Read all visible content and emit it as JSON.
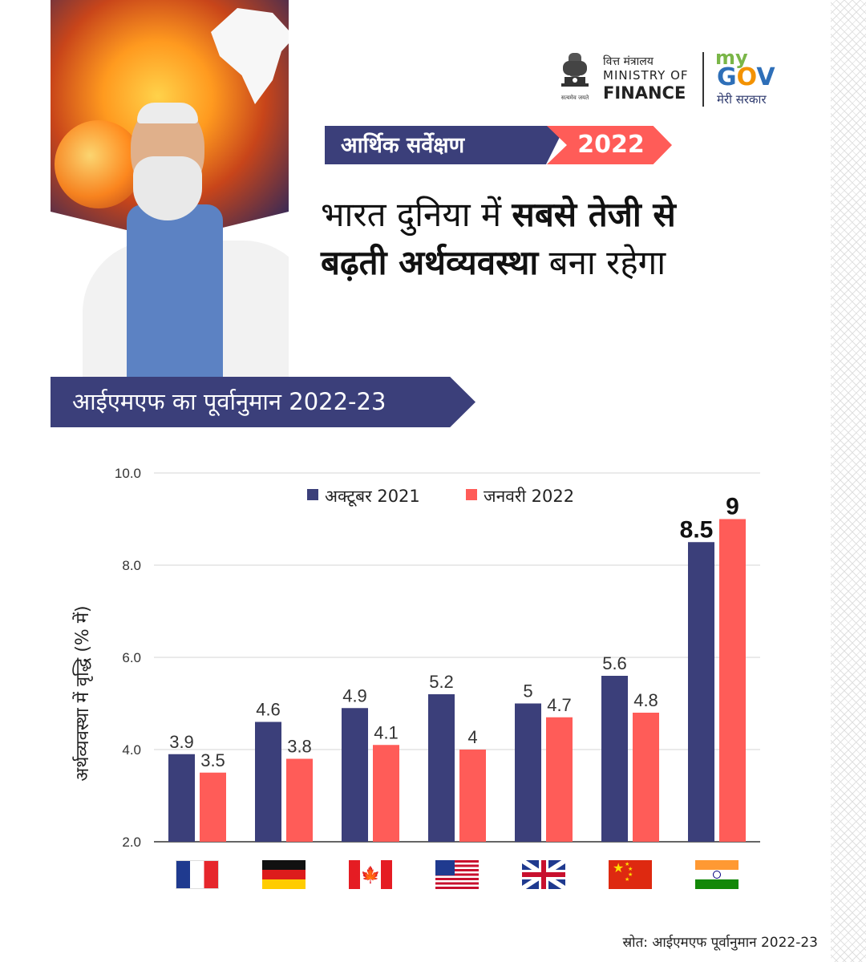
{
  "ministry": {
    "hindi": "वित्त मंत्रालय",
    "line1": "MINISTRY OF",
    "line2": "FINANCE",
    "motto": "सत्यमेव जयते"
  },
  "mygov": {
    "my": "my",
    "gov_g": "G",
    "gov_o": "O",
    "gov_v": "V",
    "tagline": "मेरी सरकार"
  },
  "survey": {
    "label": "आर्थिक सर्वेक्षण",
    "year": "2022"
  },
  "headline": {
    "part1": "भारत दुनिया में ",
    "bold1": "सबसे तेजी से",
    "bold2": "बढ़ती अर्थव्यवस्था",
    "part2": " बना रहेगा"
  },
  "imf_banner": "आईएमएफ का पूर्वानुमान 2022-23",
  "colors": {
    "navy": "#3b3f7a",
    "coral": "#ff5c58"
  },
  "chart_data": {
    "type": "bar",
    "ylabel": "अर्थव्यवस्था में वृद्धि (% में)",
    "ylim": [
      2.0,
      10.0
    ],
    "yticks": [
      "2.0",
      "4.0",
      "6.0",
      "8.0",
      "10.0"
    ],
    "legend_position": "top",
    "grid": true,
    "categories": [
      "France",
      "Germany",
      "Canada",
      "USA",
      "UK",
      "China",
      "India"
    ],
    "category_icons": [
      "flag-france",
      "flag-germany",
      "flag-canada",
      "flag-usa",
      "flag-uk",
      "flag-china",
      "flag-india"
    ],
    "series": [
      {
        "name": "अक्टूबर 2021",
        "color": "#3b3f7a",
        "values": [
          3.9,
          4.6,
          4.9,
          5.2,
          5,
          5.6,
          8.5
        ],
        "labels": [
          "3.9",
          "4.6",
          "4.9",
          "5.2",
          "5",
          "5.6",
          "8.5"
        ]
      },
      {
        "name": "जनवरी  2022",
        "color": "#ff5c58",
        "values": [
          3.5,
          3.8,
          4.1,
          4,
          4.7,
          4.8,
          9
        ],
        "labels": [
          "3.5",
          "3.8",
          "4.1",
          "4",
          "4.7",
          "4.8",
          "9"
        ]
      }
    ]
  },
  "source": "स्रोत: आईएमएफ पूर्वानुमान 2022-23"
}
